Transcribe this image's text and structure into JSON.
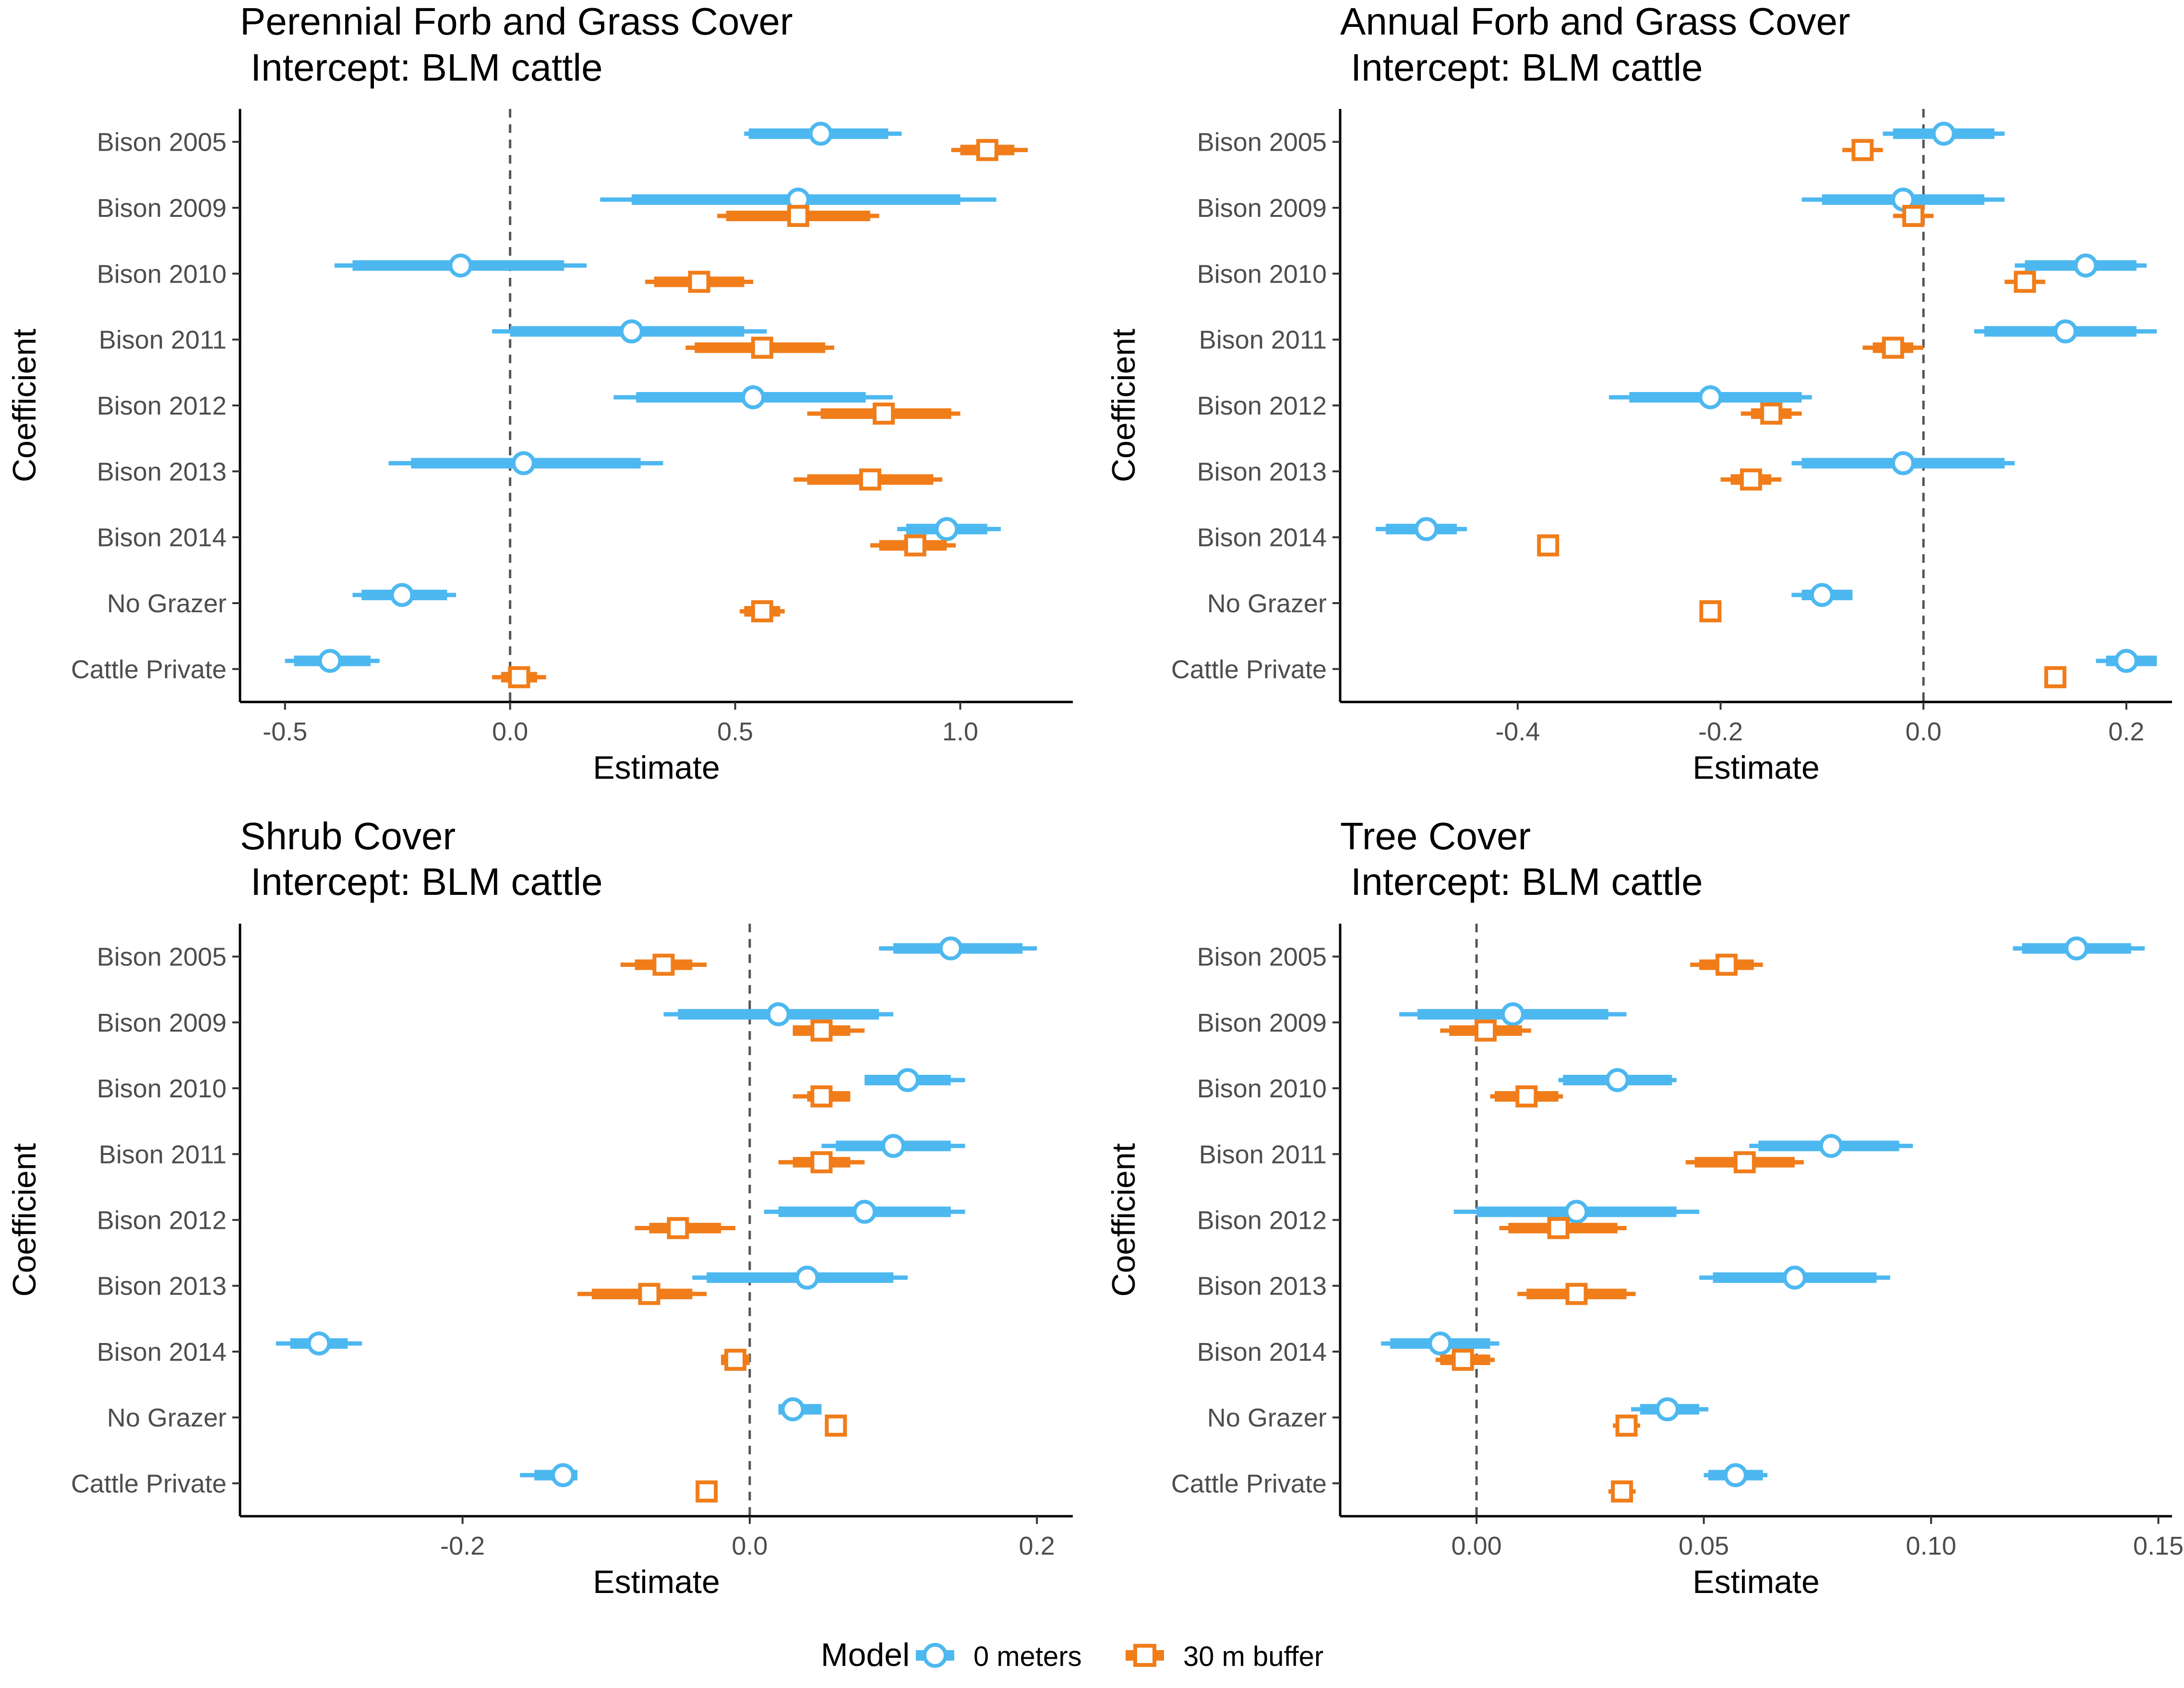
{
  "colors": {
    "zero_meters": "#4db8f0",
    "buffer_30m": "#f07d1a",
    "axis": "#000000",
    "zero_line": "#555555"
  },
  "legend": {
    "title": "Model",
    "items": [
      {
        "label": "0 meters",
        "color": "#4db8f0",
        "marker": "circle-icon"
      },
      {
        "label": "30 m buffer",
        "color": "#f07d1a",
        "marker": "square-icon"
      }
    ]
  },
  "chart_data": [
    {
      "type": "coefficient-plot",
      "title": "Perennial Forb and Grass Cover",
      "subtitle": "Intercept: BLM cattle",
      "xlabel": "Estimate",
      "ylabel": "Coefficient",
      "xlim": [
        -0.6,
        1.25
      ],
      "xticks": [
        -0.5,
        0.0,
        0.5,
        1.0
      ],
      "xtick_labels": [
        "-0.5",
        "0.0",
        "0.5",
        "1.0"
      ],
      "categories": [
        "Bison 2005",
        "Bison 2009",
        "Bison 2010",
        "Bison 2011",
        "Bison 2012",
        "Bison 2013",
        "Bison 2014",
        "No Grazer",
        "Cattle Private"
      ],
      "series": [
        {
          "name": "0 meters",
          "estimate": [
            0.69,
            0.64,
            -0.11,
            0.27,
            0.54,
            0.03,
            0.97,
            -0.24,
            -0.4
          ],
          "inner": [
            [
              0.53,
              0.84
            ],
            [
              0.27,
              1.0
            ],
            [
              -0.35,
              0.12
            ],
            [
              0.0,
              0.52
            ],
            [
              0.28,
              0.79
            ],
            [
              -0.22,
              0.29
            ],
            [
              0.88,
              1.06
            ],
            [
              -0.33,
              -0.14
            ],
            [
              -0.48,
              -0.31
            ]
          ],
          "outer": [
            [
              0.52,
              0.87
            ],
            [
              0.2,
              1.08
            ],
            [
              -0.39,
              0.17
            ],
            [
              -0.04,
              0.57
            ],
            [
              0.23,
              0.85
            ],
            [
              -0.27,
              0.34
            ],
            [
              0.86,
              1.09
            ],
            [
              -0.35,
              -0.12
            ],
            [
              -0.5,
              -0.29
            ]
          ]
        },
        {
          "name": "30 m buffer",
          "estimate": [
            1.06,
            0.64,
            0.42,
            0.56,
            0.83,
            0.8,
            0.9,
            0.56,
            0.02
          ],
          "inner": [
            [
              1.0,
              1.12
            ],
            [
              0.48,
              0.8
            ],
            [
              0.32,
              0.52
            ],
            [
              0.41,
              0.7
            ],
            [
              0.69,
              0.98
            ],
            [
              0.66,
              0.94
            ],
            [
              0.82,
              0.97
            ],
            [
              0.52,
              0.6
            ],
            [
              -0.02,
              0.06
            ]
          ],
          "outer": [
            [
              0.98,
              1.15
            ],
            [
              0.46,
              0.82
            ],
            [
              0.3,
              0.54
            ],
            [
              0.39,
              0.72
            ],
            [
              0.66,
              1.0
            ],
            [
              0.63,
              0.96
            ],
            [
              0.8,
              0.99
            ],
            [
              0.51,
              0.61
            ],
            [
              -0.04,
              0.08
            ]
          ]
        }
      ]
    },
    {
      "type": "coefficient-plot",
      "title": "Annual Forb and Grass Cover",
      "subtitle": "Intercept: BLM cattle",
      "xlabel": "Estimate",
      "ylabel": "Coefficient",
      "xlim": [
        -0.575,
        0.245
      ],
      "xticks": [
        -0.4,
        -0.2,
        0.0,
        0.2
      ],
      "xtick_labels": [
        "-0.4",
        "-0.2",
        "0.0",
        "0.2"
      ],
      "categories": [
        "Bison 2005",
        "Bison 2009",
        "Bison 2010",
        "Bison 2011",
        "Bison 2012",
        "Bison 2013",
        "Bison 2014",
        "No Grazer",
        "Cattle Private"
      ],
      "series": [
        {
          "name": "0 meters",
          "estimate": [
            0.02,
            -0.02,
            0.16,
            0.14,
            -0.21,
            -0.02,
            -0.49,
            -0.1,
            0.2
          ],
          "inner": [
            [
              -0.03,
              0.07
            ],
            [
              -0.1,
              0.06
            ],
            [
              0.1,
              0.21
            ],
            [
              0.06,
              0.21
            ],
            [
              -0.29,
              -0.12
            ],
            [
              -0.12,
              0.08
            ],
            [
              -0.53,
              -0.46
            ],
            [
              -0.12,
              -0.07
            ],
            [
              0.18,
              0.23
            ]
          ],
          "outer": [
            [
              -0.04,
              0.08
            ],
            [
              -0.12,
              0.08
            ],
            [
              0.09,
              0.22
            ],
            [
              0.05,
              0.23
            ],
            [
              -0.31,
              -0.11
            ],
            [
              -0.13,
              0.09
            ],
            [
              -0.54,
              -0.45
            ],
            [
              -0.13,
              -0.07
            ],
            [
              0.17,
              0.23
            ]
          ]
        },
        {
          "name": "30 m buffer",
          "estimate": [
            -0.06,
            -0.01,
            0.1,
            -0.03,
            -0.15,
            -0.17,
            -0.37,
            -0.21,
            0.13
          ],
          "inner": [
            [
              -0.07,
              -0.05
            ],
            [
              -0.02,
              0.0
            ],
            [
              0.09,
              0.11
            ],
            [
              -0.05,
              -0.01
            ],
            [
              -0.17,
              -0.13
            ],
            [
              -0.19,
              -0.15
            ],
            [
              -0.37,
              -0.37
            ],
            [
              -0.21,
              -0.21
            ],
            [
              0.13,
              0.13
            ]
          ],
          "outer": [
            [
              -0.08,
              -0.04
            ],
            [
              -0.03,
              0.01
            ],
            [
              0.08,
              0.12
            ],
            [
              -0.06,
              0.0
            ],
            [
              -0.18,
              -0.12
            ],
            [
              -0.2,
              -0.14
            ],
            [
              -0.37,
              -0.37
            ],
            [
              -0.21,
              -0.21
            ],
            [
              0.13,
              0.13
            ]
          ]
        }
      ]
    },
    {
      "type": "coefficient-plot",
      "title": "Shrub Cover",
      "subtitle": "Intercept: BLM cattle",
      "xlabel": "Estimate",
      "ylabel": "Coefficient",
      "xlim": [
        -0.355,
        0.225
      ],
      "xticks": [
        -0.2,
        0.0,
        0.2
      ],
      "xtick_labels": [
        "-0.2",
        "0.0",
        "0.2"
      ],
      "categories": [
        "Bison 2005",
        "Bison 2009",
        "Bison 2010",
        "Bison 2011",
        "Bison 2012",
        "Bison 2013",
        "Bison 2014",
        "No Grazer",
        "Cattle Private"
      ],
      "series": [
        {
          "name": "0 meters",
          "estimate": [
            0.14,
            0.02,
            0.11,
            0.1,
            0.08,
            0.04,
            -0.3,
            0.03,
            -0.13
          ],
          "inner": [
            [
              0.1,
              0.19
            ],
            [
              -0.05,
              0.09
            ],
            [
              0.08,
              0.14
            ],
            [
              0.06,
              0.14
            ],
            [
              0.02,
              0.14
            ],
            [
              -0.03,
              0.1
            ],
            [
              -0.32,
              -0.28
            ],
            [
              0.02,
              0.05
            ],
            [
              -0.15,
              -0.12
            ]
          ],
          "outer": [
            [
              0.09,
              0.2
            ],
            [
              -0.06,
              0.1
            ],
            [
              0.08,
              0.15
            ],
            [
              0.05,
              0.15
            ],
            [
              0.01,
              0.15
            ],
            [
              -0.04,
              0.11
            ],
            [
              -0.33,
              -0.27
            ],
            [
              0.02,
              0.05
            ],
            [
              -0.16,
              -0.12
            ]
          ]
        },
        {
          "name": "30 m buffer",
          "estimate": [
            -0.06,
            0.05,
            0.05,
            0.05,
            -0.05,
            -0.07,
            -0.01,
            0.06,
            -0.03
          ],
          "inner": [
            [
              -0.08,
              -0.04
            ],
            [
              0.03,
              0.07
            ],
            [
              0.04,
              0.07
            ],
            [
              0.03,
              0.07
            ],
            [
              -0.07,
              -0.02
            ],
            [
              -0.11,
              -0.04
            ],
            [
              -0.02,
              0.0
            ],
            [
              0.06,
              0.06
            ],
            [
              -0.03,
              -0.03
            ]
          ],
          "outer": [
            [
              -0.09,
              -0.03
            ],
            [
              0.03,
              0.08
            ],
            [
              0.03,
              0.07
            ],
            [
              0.02,
              0.08
            ],
            [
              -0.08,
              -0.01
            ],
            [
              -0.12,
              -0.03
            ],
            [
              -0.02,
              0.0
            ],
            [
              0.06,
              0.06
            ],
            [
              -0.03,
              -0.03
            ]
          ]
        }
      ]
    },
    {
      "type": "coefficient-plot",
      "title": "Tree Cover",
      "subtitle": "Intercept: BLM cattle",
      "xlabel": "Estimate",
      "ylabel": "Coefficient",
      "xlim": [
        -0.03,
        0.153
      ],
      "xticks": [
        0.0,
        0.05,
        0.1,
        0.15
      ],
      "xtick_labels": [
        "0.00",
        "0.05",
        "0.10",
        "0.15"
      ],
      "categories": [
        "Bison 2005",
        "Bison 2009",
        "Bison 2010",
        "Bison 2011",
        "Bison 2012",
        "Bison 2013",
        "Bison 2014",
        "No Grazer",
        "Cattle Private"
      ],
      "series": [
        {
          "name": "0 meters",
          "estimate": [
            0.132,
            0.008,
            0.031,
            0.078,
            0.022,
            0.07,
            -0.008,
            0.042,
            0.057
          ],
          "inner": [
            [
              0.12,
              0.144
            ],
            [
              -0.013,
              0.029
            ],
            [
              0.019,
              0.043
            ],
            [
              0.062,
              0.093
            ],
            [
              0.0,
              0.044
            ],
            [
              0.052,
              0.088
            ],
            [
              -0.019,
              0.003
            ],
            [
              0.036,
              0.049
            ],
            [
              0.051,
              0.063
            ]
          ],
          "outer": [
            [
              0.118,
              0.147
            ],
            [
              -0.017,
              0.033
            ],
            [
              0.018,
              0.044
            ],
            [
              0.06,
              0.096
            ],
            [
              -0.005,
              0.049
            ],
            [
              0.049,
              0.091
            ],
            [
              -0.021,
              0.005
            ],
            [
              0.034,
              0.051
            ],
            [
              0.05,
              0.064
            ]
          ]
        },
        {
          "name": "30 m buffer",
          "estimate": [
            0.055,
            0.002,
            0.011,
            0.059,
            0.018,
            0.022,
            -0.003,
            0.033,
            0.032
          ],
          "inner": [
            [
              0.049,
              0.061
            ],
            [
              -0.006,
              0.01
            ],
            [
              0.004,
              0.018
            ],
            [
              0.048,
              0.07
            ],
            [
              0.007,
              0.031
            ],
            [
              0.011,
              0.033
            ],
            [
              -0.008,
              0.003
            ],
            [
              0.031,
              0.035
            ],
            [
              0.03,
              0.034
            ]
          ],
          "outer": [
            [
              0.047,
              0.063
            ],
            [
              -0.008,
              0.012
            ],
            [
              0.003,
              0.019
            ],
            [
              0.046,
              0.072
            ],
            [
              0.005,
              0.033
            ],
            [
              0.009,
              0.035
            ],
            [
              -0.009,
              0.004
            ],
            [
              0.03,
              0.036
            ],
            [
              0.029,
              0.035
            ]
          ]
        }
      ]
    }
  ]
}
